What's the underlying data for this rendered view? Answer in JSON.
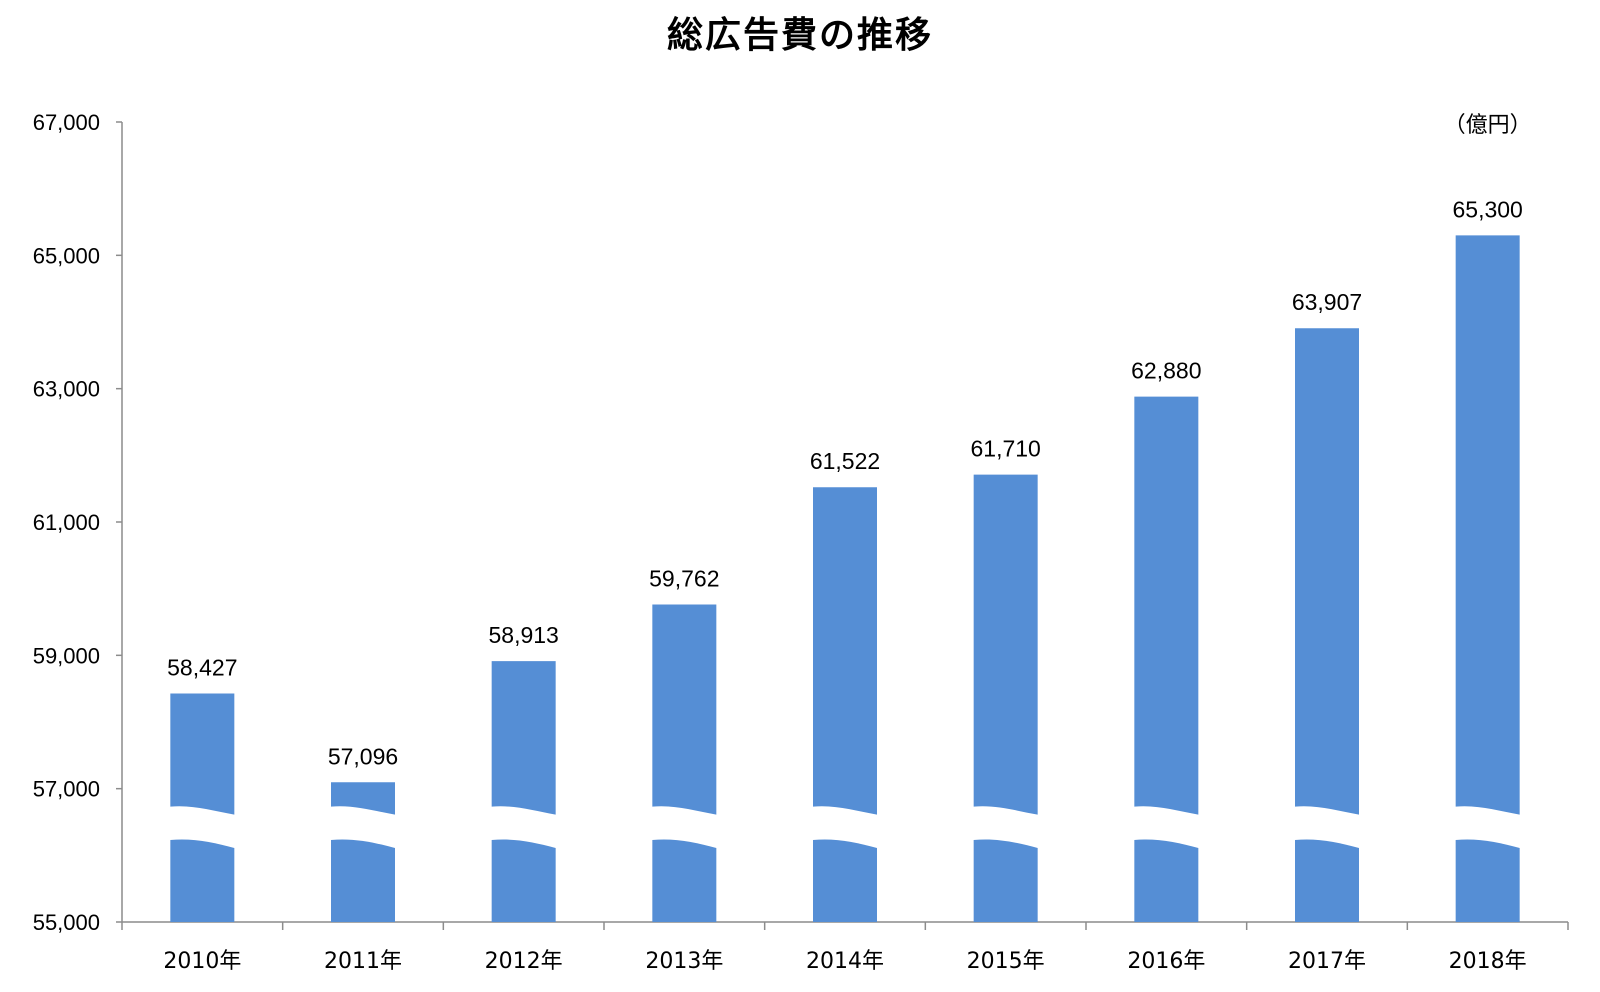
{
  "chart_data": {
    "type": "bar",
    "title": "総広告費の推移",
    "unit": "（億円）",
    "categories": [
      "2010年",
      "2011年",
      "2012年",
      "2013年",
      "2014年",
      "2015年",
      "2016年",
      "2017年",
      "2018年"
    ],
    "values": [
      58427,
      57096,
      58913,
      59762,
      61522,
      61710,
      62880,
      63907,
      65300
    ],
    "value_labels": [
      "58,427",
      "57,096",
      "58,913",
      "59,762",
      "61,522",
      "61,710",
      "62,880",
      "63,907",
      "65,300"
    ],
    "ylim": [
      55000,
      67000
    ],
    "yticks": [
      55000,
      57000,
      59000,
      61000,
      63000,
      65000,
      67000
    ],
    "ytick_labels": [
      "55,000",
      "57,000",
      "59,000",
      "61,000",
      "63,000",
      "65,000",
      "67,000"
    ],
    "axis_break": true,
    "grid": false,
    "bar_color": "#558ED5"
  }
}
